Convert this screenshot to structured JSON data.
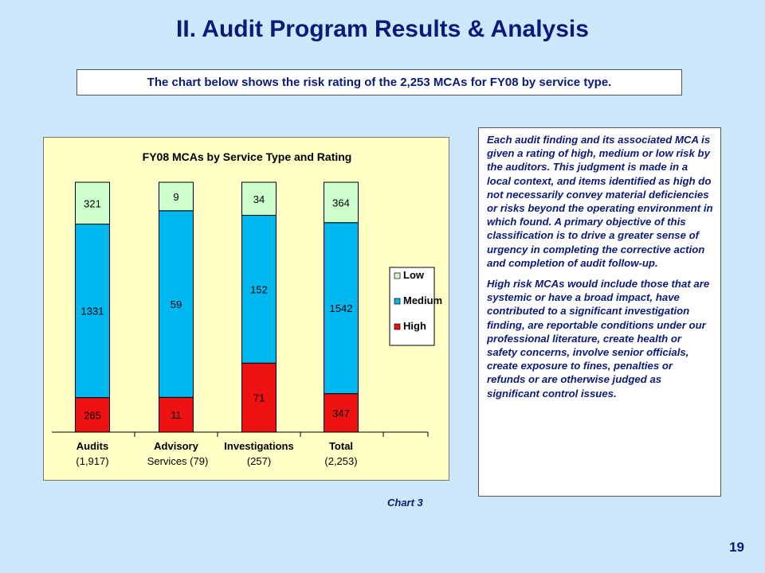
{
  "slide": {
    "title": "II. Audit Program Results & Analysis",
    "subtitle": "The chart below shows the risk rating of the 2,253 MCAs for FY08 by service type.",
    "chart_caption": "Chart 3",
    "page_number": "19"
  },
  "notes": {
    "paragraph1": "Each audit finding and its associated MCA is given a rating of high, medium or low risk by the auditors. This judgment is made in a local context, and items identified as high do not necessarily convey material deficiencies or risks beyond the operating environment in which found.  A primary objective of this classification is to drive a greater sense of urgency in completing the corrective action and completion of audit follow-up.",
    "paragraph2": "High risk MCAs would include those that are systemic or have a broad impact, have contributed to a significant  investigation finding, are reportable conditions under our professional literature, create health or safety concerns, involve senior officials, create exposure to fines, penalties or refunds or are otherwise judged as significant control issues."
  },
  "colors": {
    "high": "#ee1111",
    "medium": "#00b8f0",
    "low": "#ccffcc",
    "title_text": "#0b1a7a"
  },
  "chart_data": {
    "type": "bar",
    "stacking": "percent",
    "title": "FY08 MCAs by Service Type and Rating",
    "categories": [
      [
        "Audits",
        "(1,917)"
      ],
      [
        "Advisory",
        "Services (79)"
      ],
      [
        "Investigations",
        "(257)"
      ],
      [
        "Total",
        "(2,253)"
      ]
    ],
    "series": [
      {
        "name": "High",
        "values": [
          265,
          11,
          71,
          347
        ]
      },
      {
        "name": "Medium",
        "values": [
          1331,
          59,
          152,
          1542
        ]
      },
      {
        "name": "Low",
        "values": [
          321,
          9,
          34,
          364
        ]
      }
    ],
    "legend": {
      "placement": "right",
      "order": [
        "Low",
        "Medium",
        "High"
      ]
    },
    "grid": false
  }
}
